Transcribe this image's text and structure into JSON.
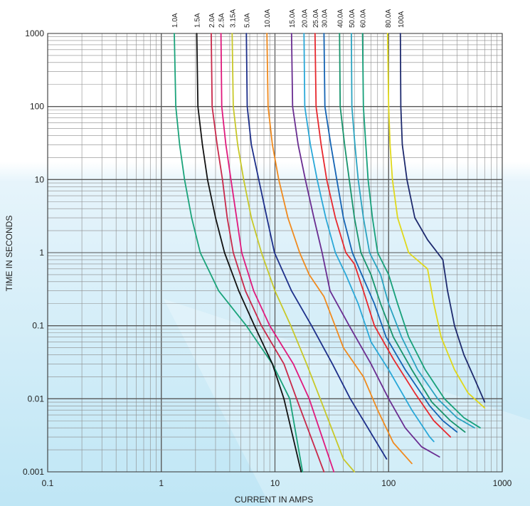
{
  "chart_data": {
    "type": "line",
    "title": "",
    "xlabel": "CURRENT IN AMPS",
    "ylabel": "TIME IN SECONDS",
    "x_scale": "log",
    "y_scale": "log",
    "xlim": [
      0.1,
      1000
    ],
    "ylim": [
      0.001,
      1000
    ],
    "x_tick_labels": [
      "0.1",
      "1",
      "10",
      "100",
      "1000"
    ],
    "y_tick_labels": [
      "0.001",
      "0.01",
      "0.1",
      "1",
      "10",
      "100",
      "1000"
    ],
    "grid": true,
    "series": [
      {
        "name": "1.0A",
        "color": "#1aa37a",
        "points": [
          [
            1.3,
            1000
          ],
          [
            1.34,
            100
          ],
          [
            1.45,
            30
          ],
          [
            1.6,
            10
          ],
          [
            1.85,
            3
          ],
          [
            2.2,
            1
          ],
          [
            3.2,
            0.3
          ],
          [
            5.6,
            0.1
          ],
          [
            9.5,
            0.03
          ],
          [
            13.5,
            0.01
          ],
          [
            17.5,
            0.001
          ]
        ]
      },
      {
        "name": "1.5A",
        "color": "#111111",
        "points": [
          [
            2.05,
            1000
          ],
          [
            2.1,
            100
          ],
          [
            2.3,
            30
          ],
          [
            2.55,
            10
          ],
          [
            3.0,
            3
          ],
          [
            3.6,
            1
          ],
          [
            4.8,
            0.3
          ],
          [
            6.6,
            0.1
          ],
          [
            9.5,
            0.03
          ],
          [
            12,
            0.01
          ],
          [
            17,
            0.001
          ]
        ]
      },
      {
        "name": "2.0A",
        "color": "#c8284a",
        "points": [
          [
            2.75,
            1000
          ],
          [
            2.8,
            100
          ],
          [
            3.1,
            30
          ],
          [
            3.45,
            10
          ],
          [
            3.8,
            3
          ],
          [
            4.3,
            1
          ],
          [
            5.5,
            0.3
          ],
          [
            7.6,
            0.1
          ],
          [
            12,
            0.03
          ],
          [
            15.5,
            0.01
          ],
          [
            27,
            0.001
          ]
        ]
      },
      {
        "name": "2.5A",
        "color": "#e0197d",
        "points": [
          [
            3.35,
            1000
          ],
          [
            3.4,
            100
          ],
          [
            3.7,
            30
          ],
          [
            4.1,
            10
          ],
          [
            4.6,
            3
          ],
          [
            5.1,
            1
          ],
          [
            6.5,
            0.3
          ],
          [
            9.0,
            0.1
          ],
          [
            14.5,
            0.03
          ],
          [
            20,
            0.01
          ],
          [
            33,
            0.001
          ]
        ]
      },
      {
        "name": "3.15A",
        "color": "#c8c828",
        "points": [
          [
            4.2,
            1000
          ],
          [
            4.3,
            100
          ],
          [
            4.7,
            30
          ],
          [
            5.3,
            10
          ],
          [
            6.2,
            3
          ],
          [
            7.6,
            1
          ],
          [
            10,
            0.3
          ],
          [
            13.8,
            0.1
          ],
          [
            19,
            0.03
          ],
          [
            25,
            0.01
          ],
          [
            40,
            0.0015
          ],
          [
            50,
            0.001
          ]
        ]
      },
      {
        "name": "5.0A",
        "color": "#1d2f8a",
        "points": [
          [
            5.6,
            1000
          ],
          [
            5.7,
            100
          ],
          [
            6.2,
            30
          ],
          [
            7.2,
            10
          ],
          [
            8.5,
            3
          ],
          [
            9.9,
            1
          ],
          [
            14,
            0.3
          ],
          [
            21,
            0.1
          ],
          [
            32,
            0.03
          ],
          [
            46,
            0.01
          ],
          [
            96,
            0.0015
          ]
        ]
      },
      {
        "name": "10.0A",
        "color": "#f08a1e",
        "points": [
          [
            8.5,
            1000
          ],
          [
            8.7,
            100
          ],
          [
            9.5,
            30
          ],
          [
            10.8,
            10
          ],
          [
            13,
            3
          ],
          [
            16.5,
            1
          ],
          [
            20,
            0.5
          ],
          [
            27,
            0.25
          ],
          [
            40,
            0.05
          ],
          [
            60,
            0.02
          ],
          [
            80,
            0.007
          ],
          [
            110,
            0.0025
          ],
          [
            160,
            0.0013
          ]
        ]
      },
      {
        "name": "15.0A",
        "color": "#6a2d91",
        "points": [
          [
            14,
            1000
          ],
          [
            14.3,
            100
          ],
          [
            16,
            30
          ],
          [
            18.5,
            10
          ],
          [
            22,
            3
          ],
          [
            26,
            1
          ],
          [
            30.5,
            0.3
          ],
          [
            45,
            0.1
          ],
          [
            70,
            0.03
          ],
          [
            100,
            0.01
          ],
          [
            140,
            0.004
          ],
          [
            195,
            0.0022
          ],
          [
            280,
            0.0016
          ]
        ]
      },
      {
        "name": "20.0A",
        "color": "#2aa8d8",
        "points": [
          [
            18,
            1000
          ],
          [
            18.3,
            100
          ],
          [
            20.5,
            30
          ],
          [
            23.5,
            10
          ],
          [
            28,
            3
          ],
          [
            34,
            1
          ],
          [
            42,
            0.5
          ],
          [
            54,
            0.2
          ],
          [
            70,
            0.06
          ],
          [
            100,
            0.025
          ],
          [
            160,
            0.007
          ],
          [
            230,
            0.003
          ],
          [
            250,
            0.0026
          ]
        ]
      },
      {
        "name": "25.0A",
        "color": "#e8282e",
        "points": [
          [
            22.5,
            1000
          ],
          [
            23,
            100
          ],
          [
            25.5,
            30
          ],
          [
            28.5,
            10
          ],
          [
            34,
            3
          ],
          [
            42,
            1
          ],
          [
            50,
            0.7
          ],
          [
            60,
            0.3
          ],
          [
            75,
            0.1
          ],
          [
            110,
            0.035
          ],
          [
            170,
            0.012
          ],
          [
            250,
            0.005
          ],
          [
            350,
            0.003
          ]
        ]
      },
      {
        "name": "30.0A",
        "color": "#1464b4",
        "points": [
          [
            27,
            1000
          ],
          [
            27.5,
            100
          ],
          [
            31,
            30
          ],
          [
            35,
            10
          ],
          [
            40,
            3
          ],
          [
            48,
            1
          ],
          [
            58,
            0.5
          ],
          [
            75,
            0.2
          ],
          [
            95,
            0.07
          ],
          [
            140,
            0.025
          ],
          [
            230,
            0.008
          ],
          [
            300,
            0.005
          ],
          [
            400,
            0.0035
          ]
        ]
      },
      {
        "name": "40.0A",
        "color": "#17936b",
        "points": [
          [
            37,
            1000
          ],
          [
            37.5,
            100
          ],
          [
            41,
            30
          ],
          [
            45,
            10
          ],
          [
            50,
            3
          ],
          [
            57,
            1
          ],
          [
            70,
            0.5
          ],
          [
            85,
            0.2
          ],
          [
            110,
            0.07
          ],
          [
            160,
            0.025
          ],
          [
            240,
            0.009
          ],
          [
            350,
            0.005
          ],
          [
            470,
            0.0035
          ]
        ]
      },
      {
        "name": "50.0A",
        "color": "#2aa3c0",
        "points": [
          [
            47,
            1000
          ],
          [
            47.5,
            100
          ],
          [
            50.5,
            30
          ],
          [
            54,
            10
          ],
          [
            60,
            3
          ],
          [
            68,
            1
          ],
          [
            85,
            0.5
          ],
          [
            100,
            0.2
          ],
          [
            130,
            0.07
          ],
          [
            180,
            0.025
          ],
          [
            270,
            0.01
          ],
          [
            400,
            0.0055
          ],
          [
            570,
            0.004
          ]
        ]
      },
      {
        "name": "60.0A",
        "color": "#17a07a",
        "points": [
          [
            59,
            1000
          ],
          [
            60,
            100
          ],
          [
            63,
            30
          ],
          [
            66,
            10
          ],
          [
            72,
            3
          ],
          [
            80,
            1
          ],
          [
            100,
            0.5
          ],
          [
            120,
            0.2
          ],
          [
            150,
            0.07
          ],
          [
            210,
            0.025
          ],
          [
            310,
            0.01
          ],
          [
            460,
            0.0055
          ],
          [
            640,
            0.004
          ]
        ]
      },
      {
        "name": "80.0A",
        "color": "#e0d81a",
        "points": [
          [
            98,
            1000
          ],
          [
            100,
            100
          ],
          [
            103,
            30
          ],
          [
            108,
            10
          ],
          [
            120,
            3
          ],
          [
            150,
            1
          ],
          [
            220,
            0.6
          ],
          [
            250,
            0.2
          ],
          [
            290,
            0.07
          ],
          [
            380,
            0.025
          ],
          [
            500,
            0.012
          ],
          [
            700,
            0.0075
          ]
        ]
      },
      {
        "name": "100A",
        "color": "#1e2a6e",
        "points": [
          [
            127,
            1000
          ],
          [
            128,
            100
          ],
          [
            132,
            30
          ],
          [
            145,
            10
          ],
          [
            170,
            3
          ],
          [
            220,
            1.5
          ],
          [
            300,
            0.8
          ],
          [
            330,
            0.3
          ],
          [
            380,
            0.1
          ],
          [
            460,
            0.04
          ],
          [
            560,
            0.02
          ],
          [
            700,
            0.009
          ]
        ]
      }
    ]
  }
}
